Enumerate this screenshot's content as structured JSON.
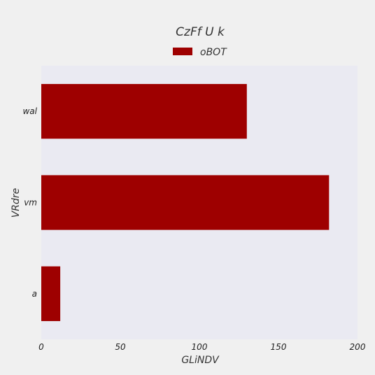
{
  "chart_data": {
    "type": "bar",
    "orientation": "horizontal",
    "title": "CzFf U k",
    "xlabel": "GLiNDV",
    "ylabel": "VRdre",
    "categories": [
      "wal",
      "vm",
      "a"
    ],
    "series": [
      {
        "name": "oBOT",
        "values": [
          130,
          182,
          12
        ],
        "color": "#9e0000"
      }
    ],
    "xlim": [
      0,
      200
    ],
    "xticks": [
      0,
      50,
      100,
      150,
      200
    ],
    "grid": false,
    "legend_position": "top-center",
    "plot_background": "#eaeaf2",
    "figure_background": "#f0f0f0"
  }
}
